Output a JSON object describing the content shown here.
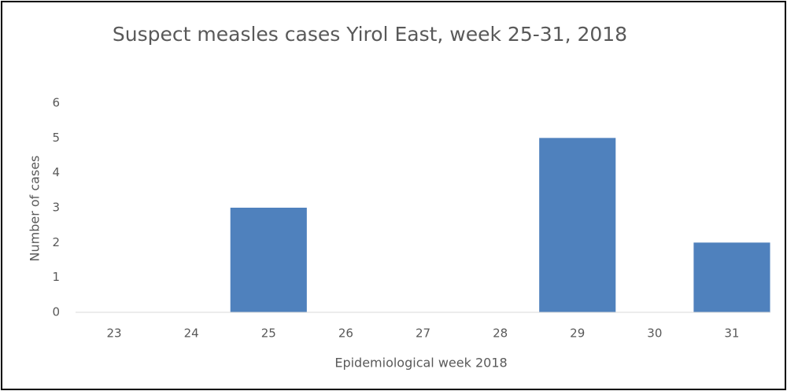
{
  "chart_data": {
    "type": "bar",
    "title": "Suspect measles cases Yirol East, week 25-31, 2018",
    "categories": [
      "23",
      "24",
      "25",
      "26",
      "27",
      "28",
      "29",
      "30",
      "31"
    ],
    "values": [
      0,
      0,
      3,
      0,
      0,
      0,
      5,
      0,
      2
    ],
    "color": "#4f81bd",
    "ylim": [
      0,
      6
    ],
    "yticks": [
      0,
      1,
      2,
      3,
      4,
      5,
      6
    ],
    "grid": false,
    "x_label": "Epidemiological week 2018",
    "y_label": "Number of cases"
  }
}
